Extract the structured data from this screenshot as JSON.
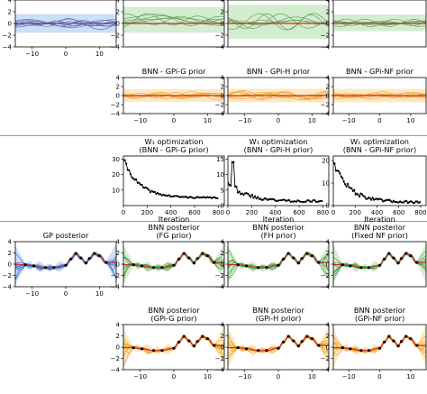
{
  "chart_data": [
    {
      "id": "p_gp_prior",
      "type": "line",
      "title": [],
      "xlabel": "",
      "kind": "prior",
      "color": "#2f6fd1",
      "band": "#bcd3f1",
      "mean": "#d62728",
      "band_range": [
        -1.6,
        1.6
      ],
      "xlim": [
        -15,
        15
      ],
      "ylim": [
        -4,
        4
      ],
      "xticks": [
        -10,
        0,
        10
      ],
      "xtick_labels": [
        "−10",
        "0",
        "10"
      ],
      "yticks": [
        -4,
        -2,
        0,
        2,
        4
      ],
      "ytick_labels": [
        "−4",
        "−2",
        "0",
        "2",
        "4"
      ],
      "n_samples": 8,
      "seed": 3
    },
    {
      "id": "p_fg_prior",
      "type": "line",
      "title": [],
      "xlabel": "",
      "kind": "prior",
      "color": "#4a9e4a",
      "band": "#c5e6bf",
      "mean": "#d62728",
      "band_range": [
        -1.6,
        2.8
      ],
      "xlim": [
        -15,
        15
      ],
      "ylim": [
        -4,
        4
      ],
      "xticks": [],
      "xtick_labels": [],
      "yticks": [
        -4,
        -2,
        0,
        2,
        4
      ],
      "ytick_labels": [
        "−4",
        "−2",
        "0",
        "2",
        "4"
      ],
      "n_samples": 6,
      "seed": 11
    },
    {
      "id": "p_fh_prior",
      "type": "line",
      "title": [],
      "xlabel": "",
      "kind": "prior",
      "color": "#4a9e4a",
      "band": "#c5e6bf",
      "mean": "#d62728",
      "band_range": [
        -2.6,
        3.2
      ],
      "xlim": [
        -15,
        15
      ],
      "ylim": [
        -4,
        4
      ],
      "xticks": [],
      "xtick_labels": [],
      "yticks": [
        -4,
        -2,
        0,
        2,
        4
      ],
      "ytick_labels": [
        "−4",
        "−2",
        "0",
        "2",
        "4"
      ],
      "n_samples": 6,
      "seed": 17
    },
    {
      "id": "p_fnf_prior",
      "type": "line",
      "title": [],
      "xlabel": "",
      "kind": "prior",
      "color": "#4a9e4a",
      "band": "#c5e6bf",
      "mean": "#d62728",
      "band_range": [
        -1.3,
        1.5
      ],
      "xlim": [
        -15,
        15
      ],
      "ylim": [
        -4,
        4
      ],
      "xticks": [],
      "xtick_labels": [],
      "yticks": [
        -4,
        -2,
        0,
        2,
        4
      ],
      "ytick_labels": [
        "−4",
        "−2",
        "0",
        "2",
        "4"
      ],
      "n_samples": 6,
      "seed": 23
    },
    {
      "id": "p_gpig_prior",
      "type": "line",
      "title": [
        "BNN - GPi-G prior"
      ],
      "xlabel": "",
      "kind": "prior",
      "color": "#f0a020",
      "band": "#fbe0b0",
      "mean": "#d62728",
      "band_range": [
        -1.4,
        1.4
      ],
      "xlim": [
        -15,
        15
      ],
      "ylim": [
        -4,
        4
      ],
      "xticks": [
        -10,
        0,
        10
      ],
      "xtick_labels": [
        "−10",
        "0",
        "10"
      ],
      "yticks": [
        -4,
        -2,
        0,
        2,
        4
      ],
      "ytick_labels": [
        "−4",
        "−2",
        "0",
        "2",
        "4"
      ],
      "n_samples": 7,
      "seed": 29
    },
    {
      "id": "p_gpih_prior",
      "type": "line",
      "title": [
        "BNN - GPi-H prior"
      ],
      "xlabel": "",
      "kind": "prior",
      "color": "#f0a020",
      "band": "#fbe0b0",
      "mean": "#d62728",
      "band_range": [
        -1.5,
        1.5
      ],
      "xlim": [
        -15,
        15
      ],
      "ylim": [
        -4,
        4
      ],
      "xticks": [
        -10,
        0,
        10
      ],
      "xtick_labels": [
        "−10",
        "0",
        "10"
      ],
      "yticks": [
        -4,
        -2,
        0,
        2,
        4
      ],
      "ytick_labels": [
        "−4",
        "−2",
        "0",
        "2",
        "4"
      ],
      "n_samples": 7,
      "seed": 31
    },
    {
      "id": "p_gpinf_prior",
      "type": "line",
      "title": [
        "BNN - GPi-NF prior"
      ],
      "xlabel": "",
      "kind": "prior",
      "color": "#f0a020",
      "band": "#fbe0b0",
      "mean": "#d62728",
      "band_range": [
        -1.5,
        1.5
      ],
      "xlim": [
        -15,
        15
      ],
      "ylim": [
        -4,
        4
      ],
      "xticks": [
        -10,
        0,
        10
      ],
      "xtick_labels": [
        "−10",
        "0",
        "10"
      ],
      "yticks": [
        -4,
        -2,
        0,
        2,
        4
      ],
      "ytick_labels": [
        "−4",
        "−2",
        "0",
        "2",
        "4"
      ],
      "n_samples": 7,
      "seed": 37
    },
    {
      "id": "p_w1_g",
      "type": "line",
      "title": [
        "W₁ optimization",
        "(BNN - GPi-G prior)"
      ],
      "xlabel": "Iteration",
      "kind": "loss",
      "start": 30,
      "end": 5,
      "tau": 130,
      "noise": 0.8,
      "spike": null,
      "xlim": [
        0,
        850
      ],
      "ylim": [
        0,
        32
      ],
      "xticks": [
        0,
        200,
        400,
        600,
        800
      ],
      "xtick_labels": [
        "0",
        "200",
        "400",
        "600",
        "800"
      ],
      "yticks": [
        10,
        20,
        30
      ],
      "ytick_labels": [
        "10",
        "20",
        "30"
      ],
      "seed": 41
    },
    {
      "id": "p_w1_h",
      "type": "line",
      "title": [
        "W₁ optimization",
        "(BNN - GPi-H prior)"
      ],
      "xlabel": "Iteration",
      "kind": "loss",
      "start": 8,
      "end": 1.4,
      "tau": 140,
      "noise": 0.6,
      "spike": [
        40,
        14
      ],
      "xlim": [
        0,
        850
      ],
      "ylim": [
        0,
        16
      ],
      "xticks": [
        0,
        200,
        400,
        600,
        800
      ],
      "xtick_labels": [
        "0",
        "200",
        "400",
        "600",
        "800"
      ],
      "yticks": [
        0,
        5,
        10,
        15
      ],
      "ytick_labels": [
        "0",
        "5",
        "10",
        "15"
      ],
      "seed": 43
    },
    {
      "id": "p_w1_nf",
      "type": "line",
      "title": [
        "W₁ optimization",
        "(BNN - GPi-NF prior)"
      ],
      "xlabel": "Iteration",
      "kind": "loss",
      "start": 20,
      "end": 1.5,
      "tau": 140,
      "noise": 0.9,
      "spike": null,
      "xlim": [
        0,
        850
      ],
      "ylim": [
        0,
        22
      ],
      "xticks": [
        0,
        200,
        400,
        600,
        800
      ],
      "xtick_labels": [
        "0",
        "200",
        "400",
        "600",
        "800"
      ],
      "yticks": [
        0,
        10,
        20
      ],
      "ytick_labels": [
        "0",
        "10",
        "20"
      ],
      "seed": 47
    },
    {
      "id": "p_gp_post",
      "type": "line",
      "title": [
        "GP posterior"
      ],
      "xlabel": "",
      "kind": "posterior",
      "color": "#2f6fd1",
      "band": "#bcd3f1",
      "mean": "#d62728",
      "xlim": [
        -15,
        15
      ],
      "ylim": [
        -4,
        4
      ],
      "xticks": [
        -10,
        0,
        10
      ],
      "xtick_labels": [
        "−10",
        "0",
        "10"
      ],
      "yticks": [
        -4,
        -2,
        0,
        2,
        4
      ],
      "ytick_labels": [
        "−4",
        "−2",
        "0",
        "2",
        "4"
      ],
      "n_samples": 10,
      "seed": 53
    },
    {
      "id": "p_fg_post",
      "type": "line",
      "title": [
        "BNN posterior",
        "(FG prior)"
      ],
      "xlabel": "",
      "kind": "posterior",
      "color": "#4a9e4a",
      "band": "#c5e6bf",
      "mean": "#d62728",
      "xlim": [
        -15,
        15
      ],
      "ylim": [
        -4,
        4
      ],
      "xticks": [],
      "xtick_labels": [],
      "yticks": [
        -4,
        -2,
        0,
        2,
        4
      ],
      "ytick_labels": [
        "−4",
        "−2",
        "0",
        "2",
        "4"
      ],
      "n_samples": 10,
      "seed": 59
    },
    {
      "id": "p_fh_post",
      "type": "line",
      "title": [
        "BNN posterior",
        "(FH prior)"
      ],
      "xlabel": "",
      "kind": "posterior",
      "color": "#4a9e4a",
      "band": "#c5e6bf",
      "mean": "#d62728",
      "xlim": [
        -15,
        15
      ],
      "ylim": [
        -4,
        4
      ],
      "xticks": [],
      "xtick_labels": [],
      "yticks": [
        -4,
        -2,
        0,
        2,
        4
      ],
      "ytick_labels": [
        "−4",
        "−2",
        "0",
        "2",
        "4"
      ],
      "n_samples": 10,
      "seed": 61
    },
    {
      "id": "p_fnf_post",
      "type": "line",
      "title": [
        "BNN posterior",
        "(Fixed NF prior)"
      ],
      "xlabel": "",
      "kind": "posterior",
      "color": "#4a9e4a",
      "band": "#c5e6bf",
      "mean": "#d62728",
      "xlim": [
        -15,
        15
      ],
      "ylim": [
        -4,
        4
      ],
      "xticks": [],
      "xtick_labels": [],
      "yticks": [
        -4,
        -2,
        0,
        2,
        4
      ],
      "ytick_labels": [
        "−4",
        "−2",
        "0",
        "2",
        "4"
      ],
      "n_samples": 10,
      "seed": 67
    },
    {
      "id": "p_gpig_post",
      "type": "line",
      "title": [
        "BNN posterior",
        "(GPi-G prior)"
      ],
      "xlabel": "",
      "kind": "posterior",
      "color": "#f0a020",
      "band": "#fbe0b0",
      "mean": "#d62728",
      "xlim": [
        -15,
        15
      ],
      "ylim": [
        -4,
        4
      ],
      "xticks": [
        -10,
        0,
        10
      ],
      "xtick_labels": [
        "−10",
        "0",
        "10"
      ],
      "yticks": [
        -4,
        -2,
        0,
        2,
        4
      ],
      "ytick_labels": [
        "−4",
        "−2",
        "0",
        "2",
        "4"
      ],
      "n_samples": 10,
      "seed": 71
    },
    {
      "id": "p_gpih_post",
      "type": "line",
      "title": [
        "BNN posterior",
        "(GPi-H prior)"
      ],
      "xlabel": "",
      "kind": "posterior",
      "color": "#f0a020",
      "band": "#fbe0b0",
      "mean": "#d62728",
      "xlim": [
        -15,
        15
      ],
      "ylim": [
        -4,
        4
      ],
      "xticks": [
        -10,
        0,
        10
      ],
      "xtick_labels": [
        "−10",
        "0",
        "10"
      ],
      "yticks": [
        -4,
        -2,
        0,
        2,
        4
      ],
      "ytick_labels": [
        "−4",
        "−2",
        "0",
        "2",
        "4"
      ],
      "n_samples": 10,
      "seed": 73
    },
    {
      "id": "p_gpinf_post",
      "type": "line",
      "title": [
        "BNN posterior",
        "(GPi-NF prior)"
      ],
      "xlabel": "",
      "kind": "posterior",
      "color": "#f0a020",
      "band": "#fbe0b0",
      "mean": "#d62728",
      "xlim": [
        -15,
        15
      ],
      "ylim": [
        -4,
        4
      ],
      "xticks": [
        -10,
        0,
        10
      ],
      "xtick_labels": [
        "−10",
        "0",
        "10"
      ],
      "yticks": [
        -4,
        -2,
        0,
        2,
        4
      ],
      "ytick_labels": [
        "−4",
        "−2",
        "0",
        "2",
        "4"
      ],
      "n_samples": 10,
      "seed": 79
    }
  ],
  "observations": {
    "x": [
      -12,
      -9.5,
      -6,
      -3.5,
      0,
      1.5,
      3,
      4.5,
      6,
      7,
      8.5,
      10,
      12
    ],
    "y": [
      -0.1,
      -0.3,
      -0.6,
      -0.6,
      -0.2,
      0.9,
      1.9,
      1.1,
      0.2,
      1.0,
      1.9,
      1.5,
      0.3
    ]
  }
}
